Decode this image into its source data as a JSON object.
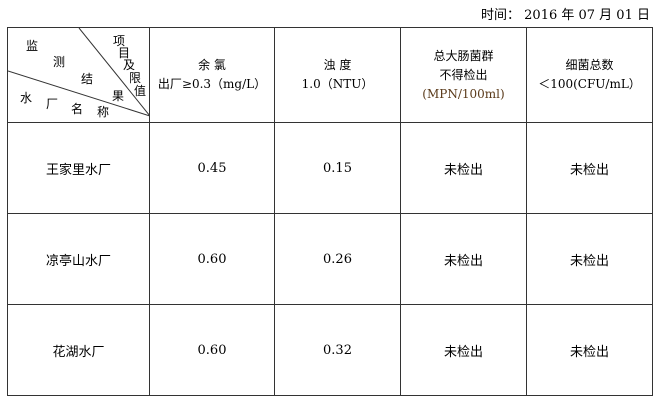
{
  "date": {
    "label": "时间：",
    "value": "2016 年 07 月 01 日"
  },
  "corner": {
    "chars_a": [
      "监",
      "测",
      "结",
      "果"
    ],
    "chars_b": [
      "水",
      "厂",
      "名",
      "称"
    ],
    "chars_c": [
      "项",
      "目",
      "及",
      "限",
      "值"
    ]
  },
  "columns": [
    {
      "line1": "余 氯",
      "line2": "出厂≥0.3（mg/L）"
    },
    {
      "line1": "浊 度",
      "line2": "1.0（NTU）"
    },
    {
      "line1": "总大肠菌群",
      "line2": "不得检出",
      "line3": "(MPN/100ml)"
    },
    {
      "line1": "细菌总数",
      "line2": "＜100(CFU/mL）"
    }
  ],
  "rows": [
    {
      "name": "王家里水厂",
      "chlorine": "0.45",
      "turbidity": "0.15",
      "coliform": "未检出",
      "bacteria": "未检出"
    },
    {
      "name": "凉亭山水厂",
      "chlorine": "0.60",
      "turbidity": "0.26",
      "coliform": "未检出",
      "bacteria": "未检出"
    },
    {
      "name": "花湖水厂",
      "chlorine": "0.60",
      "turbidity": "0.32",
      "coliform": "未检出",
      "bacteria": "未检出"
    }
  ]
}
